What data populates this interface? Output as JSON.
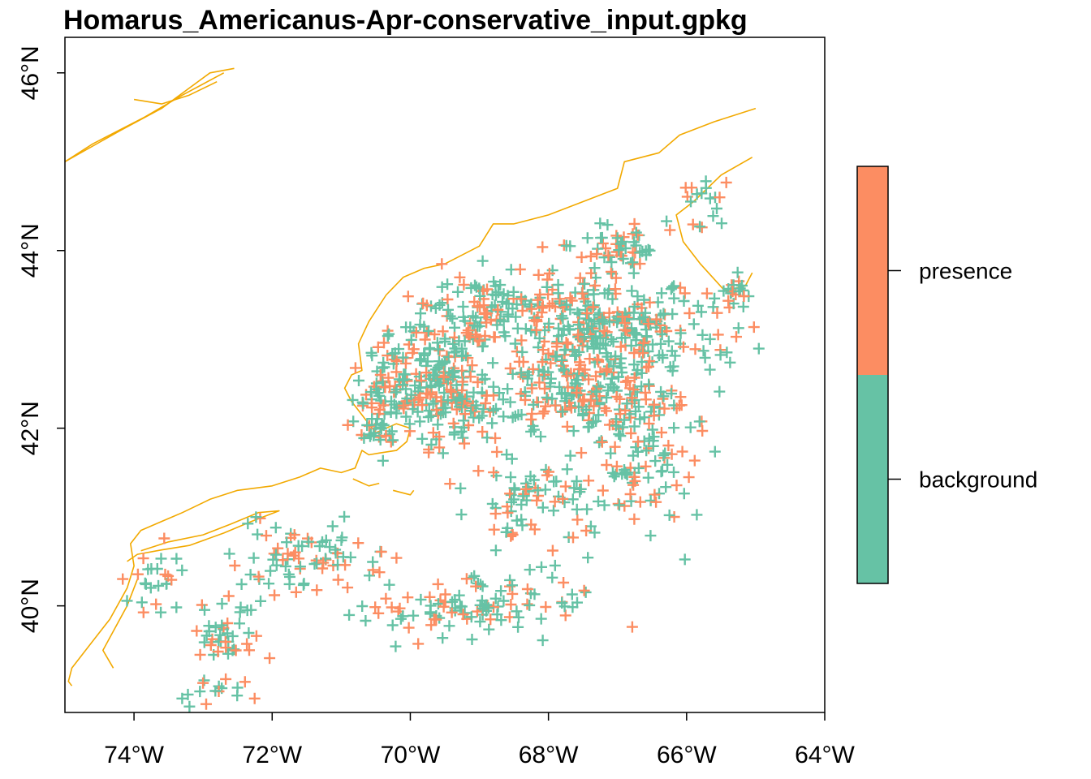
{
  "title": "Homarus_Americanus-Apr-conservative_input.gpkg",
  "axes": {
    "x_ticks": [
      {
        "value": -74,
        "label": "74°W"
      },
      {
        "value": -72,
        "label": "72°W"
      },
      {
        "value": -70,
        "label": "70°W"
      },
      {
        "value": -68,
        "label": "68°W"
      },
      {
        "value": -66,
        "label": "66°W"
      },
      {
        "value": -64,
        "label": "64°W"
      }
    ],
    "y_ticks": [
      {
        "value": 40,
        "label": "40°N"
      },
      {
        "value": 42,
        "label": "42°N"
      },
      {
        "value": 44,
        "label": "44°N"
      },
      {
        "value": 46,
        "label": "46°N"
      }
    ],
    "lon_range": [
      -75.0,
      -64.0
    ],
    "lat_range": [
      38.8,
      46.4
    ]
  },
  "legend": {
    "placement": "right",
    "items": [
      {
        "label": "presence",
        "color": "#FC8D62"
      },
      {
        "label": "background",
        "color": "#66C2A5"
      }
    ]
  },
  "colors": {
    "coastline": "#F2A900",
    "presence": "#FC8D62",
    "background": "#66C2A5",
    "frame": "#000000"
  },
  "coastline_lines": [
    [
      [
        -74.9,
        39.1
      ],
      [
        -74.95,
        39.15
      ],
      [
        -74.9,
        39.3
      ],
      [
        -74.6,
        39.6
      ],
      [
        -74.35,
        39.85
      ],
      [
        -74.1,
        40.2
      ],
      [
        -74.0,
        40.45
      ],
      [
        -74.05,
        40.7
      ],
      [
        -73.9,
        40.85
      ],
      [
        -73.6,
        40.95
      ],
      [
        -73.3,
        41.05
      ],
      [
        -72.9,
        41.2
      ],
      [
        -72.5,
        41.3
      ],
      [
        -72.0,
        41.35
      ],
      [
        -71.6,
        41.45
      ],
      [
        -71.3,
        41.55
      ],
      [
        -71.0,
        41.5
      ],
      [
        -70.8,
        41.55
      ],
      [
        -70.7,
        41.75
      ],
      [
        -70.6,
        41.7
      ],
      [
        -70.45,
        41.72
      ],
      [
        -70.2,
        41.75
      ],
      [
        -70.05,
        41.85
      ],
      [
        -70.0,
        42.0
      ],
      [
        -70.2,
        42.05
      ],
      [
        -70.5,
        41.95
      ],
      [
        -70.65,
        42.1
      ],
      [
        -70.85,
        42.3
      ],
      [
        -70.95,
        42.45
      ],
      [
        -70.85,
        42.6
      ],
      [
        -70.7,
        42.65
      ],
      [
        -70.75,
        42.95
      ],
      [
        -70.6,
        43.2
      ],
      [
        -70.35,
        43.5
      ],
      [
        -70.1,
        43.7
      ],
      [
        -69.8,
        43.8
      ],
      [
        -69.5,
        43.85
      ],
      [
        -69.0,
        44.05
      ],
      [
        -68.8,
        44.3
      ],
      [
        -68.5,
        44.3
      ],
      [
        -68.0,
        44.4
      ],
      [
        -67.5,
        44.55
      ],
      [
        -67.0,
        44.7
      ],
      [
        -66.9,
        45.0
      ],
      [
        -66.4,
        45.1
      ],
      [
        -66.1,
        45.3
      ],
      [
        -65.6,
        45.45
      ],
      [
        -65.0,
        45.6
      ]
    ],
    [
      [
        -65.05,
        45.05
      ],
      [
        -65.5,
        44.85
      ],
      [
        -65.9,
        44.55
      ],
      [
        -66.15,
        44.4
      ],
      [
        -66.05,
        44.1
      ],
      [
        -65.8,
        43.85
      ],
      [
        -65.45,
        43.55
      ],
      [
        -65.15,
        43.6
      ],
      [
        -65.05,
        43.75
      ]
    ],
    [
      [
        -74.1,
        40.5
      ],
      [
        -73.95,
        40.58
      ],
      [
        -73.6,
        40.63
      ],
      [
        -73.2,
        40.68
      ],
      [
        -72.7,
        40.82
      ],
      [
        -72.3,
        40.95
      ],
      [
        -71.9,
        41.07
      ],
      [
        -72.2,
        41.05
      ],
      [
        -72.6,
        40.92
      ],
      [
        -73.0,
        40.8
      ],
      [
        -73.5,
        40.72
      ],
      [
        -73.9,
        40.62
      ]
    ],
    [
      [
        -70.83,
        41.43
      ],
      [
        -70.6,
        41.35
      ],
      [
        -70.45,
        41.38
      ]
    ],
    [
      [
        -70.25,
        41.3
      ],
      [
        -70.0,
        41.25
      ],
      [
        -69.95,
        41.3
      ]
    ],
    [
      [
        -74.3,
        39.3
      ],
      [
        -74.45,
        39.5
      ],
      [
        -74.1,
        40.0
      ],
      [
        -73.95,
        40.3
      ]
    ],
    [
      [
        -75.0,
        45.0
      ],
      [
        -74.2,
        45.35
      ],
      [
        -73.6,
        45.6
      ],
      [
        -72.9,
        46.0
      ],
      [
        -72.55,
        46.05
      ]
    ],
    [
      [
        -75.0,
        45.0
      ],
      [
        -74.6,
        45.2
      ],
      [
        -73.85,
        45.5
      ],
      [
        -73.3,
        45.75
      ],
      [
        -72.7,
        46.0
      ]
    ],
    [
      [
        -74.0,
        45.7
      ],
      [
        -73.6,
        45.65
      ],
      [
        -73.2,
        45.75
      ],
      [
        -72.8,
        45.9
      ]
    ]
  ],
  "point_clusters": [
    {
      "center": [
        -67.2,
        43.1
      ],
      "spread": [
        1.3,
        0.55
      ],
      "count": 330
    },
    {
      "center": [
        -67.6,
        42.35
      ],
      "spread": [
        1.3,
        0.4
      ],
      "count": 200
    },
    {
      "center": [
        -69.5,
        42.55
      ],
      "spread": [
        0.55,
        0.65
      ],
      "count": 210
    },
    {
      "center": [
        -70.35,
        42.3
      ],
      "spread": [
        0.4,
        0.5
      ],
      "count": 100
    },
    {
      "center": [
        -68.9,
        43.4
      ],
      "spread": [
        0.75,
        0.35
      ],
      "count": 90
    },
    {
      "center": [
        -68.1,
        41.1
      ],
      "spread": [
        0.75,
        0.45
      ],
      "count": 80
    },
    {
      "center": [
        -69.1,
        40.0
      ],
      "spread": [
        1.4,
        0.3
      ],
      "count": 110
    },
    {
      "center": [
        -66.55,
        41.6
      ],
      "spread": [
        0.6,
        0.6
      ],
      "count": 90
    },
    {
      "center": [
        -71.6,
        40.55
      ],
      "spread": [
        0.85,
        0.35
      ],
      "count": 75
    },
    {
      "center": [
        -72.6,
        39.75
      ],
      "spread": [
        0.5,
        0.35
      ],
      "count": 45
    },
    {
      "center": [
        -73.7,
        40.25
      ],
      "spread": [
        0.3,
        0.35
      ],
      "count": 25
    },
    {
      "center": [
        -67.0,
        44.05
      ],
      "spread": [
        0.55,
        0.2
      ],
      "count": 50
    },
    {
      "center": [
        -65.3,
        43.5
      ],
      "spread": [
        0.25,
        0.18
      ],
      "count": 20
    },
    {
      "center": [
        -65.7,
        44.45
      ],
      "spread": [
        0.3,
        0.3
      ],
      "count": 18
    },
    {
      "center": [
        -73.0,
        39.0
      ],
      "spread": [
        0.6,
        0.15
      ],
      "count": 15
    }
  ]
}
